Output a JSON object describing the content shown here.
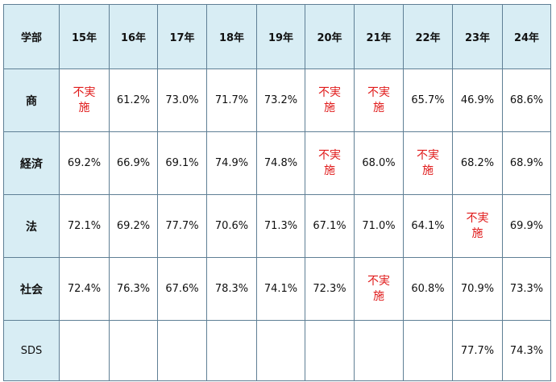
{
  "table": {
    "corner_label": "学部",
    "columns": [
      "15年",
      "16年",
      "17年",
      "18年",
      "19年",
      "20年",
      "21年",
      "22年",
      "23年",
      "24年"
    ],
    "not_implemented": [
      "不実",
      "施"
    ],
    "rows": [
      {
        "label": "商",
        "cells": [
          "不実施",
          "61.2%",
          "73.0%",
          "71.7%",
          "73.2%",
          "不実施",
          "不実施",
          "65.7%",
          "46.9%",
          "68.6%"
        ]
      },
      {
        "label": "経済",
        "cells": [
          "69.2%",
          "66.9%",
          "69.1%",
          "74.9%",
          "74.8%",
          "不実施",
          "68.0%",
          "不実施",
          "68.2%",
          "68.9%"
        ]
      },
      {
        "label": "法",
        "cells": [
          "72.1%",
          "69.2%",
          "77.7%",
          "70.6%",
          "71.3%",
          "67.1%",
          "71.0%",
          "64.1%",
          "不実施",
          "69.9%"
        ]
      },
      {
        "label": "社会",
        "cells": [
          "72.4%",
          "76.3%",
          "67.6%",
          "78.3%",
          "74.1%",
          "72.3%",
          "不実施",
          "60.8%",
          "70.9%",
          "73.3%"
        ]
      },
      {
        "label": "SDS",
        "cells": [
          "",
          "",
          "",
          "",
          "",
          "",
          "",
          "",
          "77.7%",
          "74.3%"
        ]
      }
    ],
    "colors": {
      "header_bg": "#d8edf4",
      "border": "#5f7f95",
      "not_implemented_text": "#e01a1a",
      "text": "#111111"
    }
  }
}
